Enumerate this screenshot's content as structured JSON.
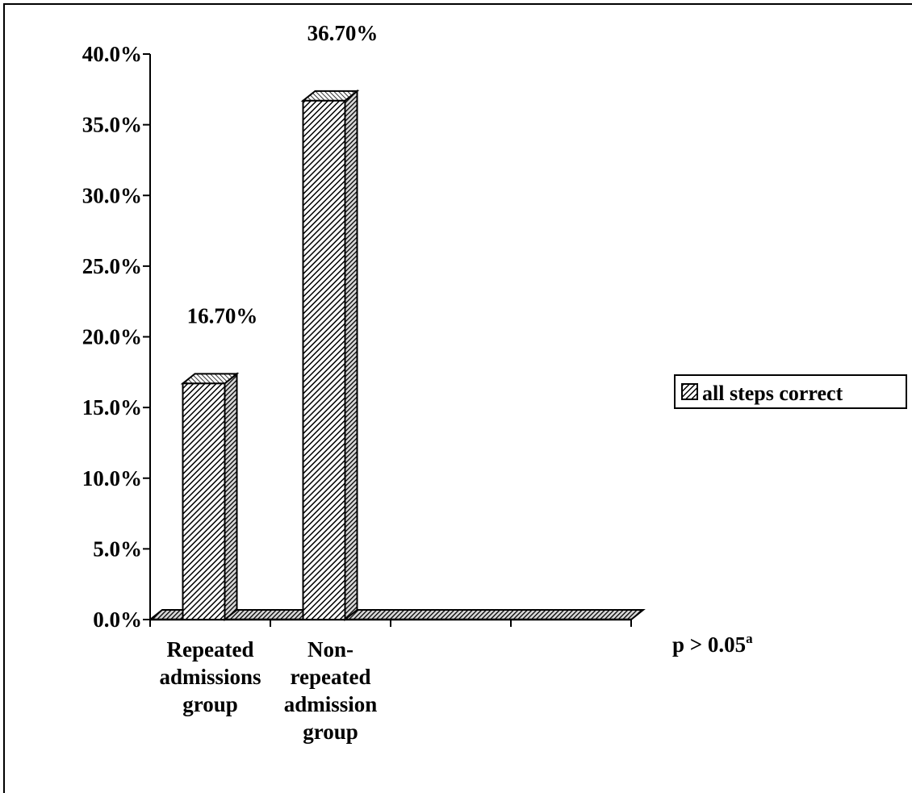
{
  "chart_data": {
    "type": "bar",
    "categories": [
      [
        "Repeated",
        "admissions",
        "group"
      ],
      [
        "Non-",
        "repeated",
        "admission",
        "group"
      ],
      [],
      []
    ],
    "series": [
      {
        "name": "all steps correct",
        "values": [
          16.7,
          36.7,
          null,
          null
        ]
      }
    ],
    "data_labels": [
      "16.70%",
      "36.70%",
      "",
      ""
    ],
    "yticks": [
      "0.0%",
      "5.0%",
      "10.0%",
      "15.0%",
      "20.0%",
      "25.0%",
      "30.0%",
      "35.0%",
      "40.0%"
    ],
    "ylim": [
      0,
      40
    ],
    "legend_placement": "right",
    "grid": false,
    "style_3d": true,
    "fill_pattern": "diagonal-hatch",
    "annotation": {
      "prefix": "p  > 0.05",
      "superscript": "a"
    }
  }
}
